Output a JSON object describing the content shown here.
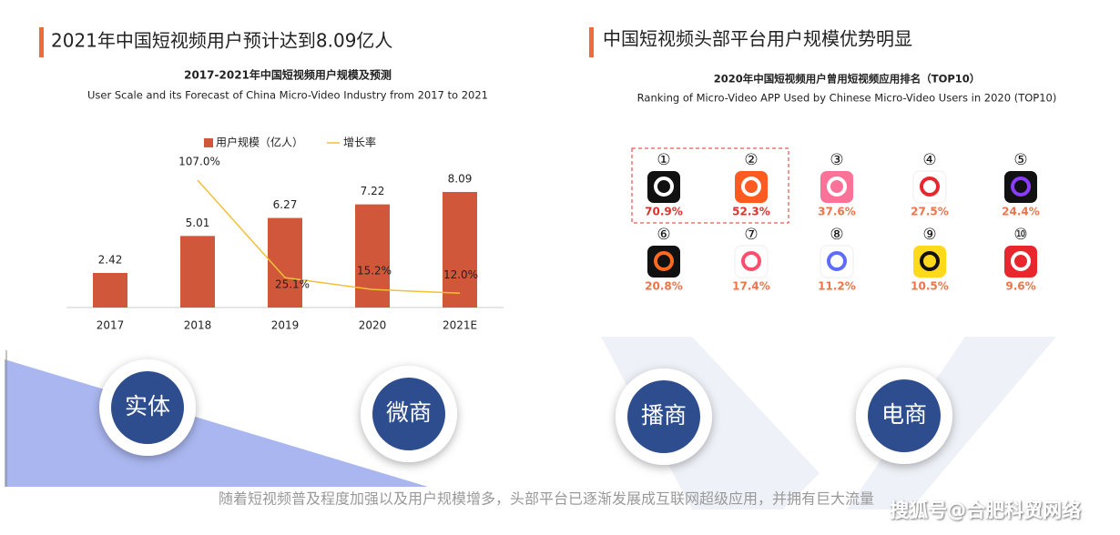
{
  "left": {
    "heading": "2021年中国短视频用户预计达到8.09亿人"
  },
  "chart_data": {
    "type": "bar",
    "title": "2017-2021年中国短视频用户规模及预测",
    "subtitle": "User Scale and its Forecast of China Micro-Video Industry from 2017 to 2021",
    "categories": [
      "2017",
      "2018",
      "2019",
      "2020",
      "2021E"
    ],
    "series": [
      {
        "name": "用户规模（亿人）",
        "type": "bar",
        "color": "#d0573a",
        "values": [
          2.42,
          5.01,
          6.27,
          7.22,
          8.09
        ]
      },
      {
        "name": "增长率",
        "type": "line",
        "axis": "y2",
        "color": "#f2c037",
        "values": [
          null,
          107.0,
          25.1,
          15.2,
          12.0
        ],
        "value_labels": [
          null,
          "107.0%",
          "25.1%",
          "15.2%",
          "12.0%"
        ]
      }
    ],
    "ylim": [
      0,
      10
    ],
    "y2lim": [
      0,
      120
    ],
    "legend": "top"
  },
  "right": {
    "heading": "中国短视频头部平台用户规模优势明显",
    "title": "2020年中国短视频用户曾用短视频应用排名（TOP10）",
    "subtitle": "Ranking of Micro-Video APP Used by Chinese Micro-Video Users in 2020 (TOP10)",
    "apps": [
      {
        "rank": "①",
        "share": "70.9%"
      },
      {
        "rank": "②",
        "share": "52.3%"
      },
      {
        "rank": "③",
        "share": "37.6%"
      },
      {
        "rank": "④",
        "share": "27.5%"
      },
      {
        "rank": "⑤",
        "share": "24.4%"
      },
      {
        "rank": "⑥",
        "share": "20.8%"
      },
      {
        "rank": "⑦",
        "share": "17.4%"
      },
      {
        "rank": "⑧",
        "share": "11.2%"
      },
      {
        "rank": "⑨",
        "share": "10.5%"
      },
      {
        "rank": "⑩",
        "share": "9.6%"
      }
    ]
  },
  "circles": [
    "实体",
    "微商",
    "播商",
    "电商"
  ],
  "footer": "随着短视频普及程度加强以及用户规模增多，头部平台已逐渐发展成互联网超级应用，并拥有巨大流量",
  "watermark": "搜狐号@合肥科贸网络"
}
